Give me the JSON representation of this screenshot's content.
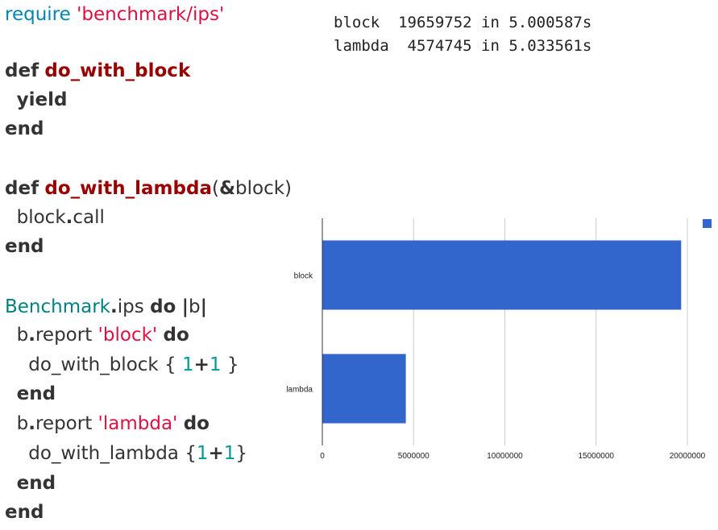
{
  "code": {
    "lines": [
      [
        {
          "t": "require",
          "c": "call"
        },
        {
          "t": " "
        },
        {
          "t": "'benchmark/ips'",
          "c": "str"
        }
      ],
      [],
      [
        {
          "t": "def",
          "c": "kw"
        },
        {
          "t": " "
        },
        {
          "t": "do_with_block",
          "c": "def"
        }
      ],
      [
        {
          "t": "  "
        },
        {
          "t": "yield",
          "c": "kw"
        }
      ],
      [
        {
          "t": "end",
          "c": "kw"
        }
      ],
      [],
      [
        {
          "t": "def",
          "c": "kw"
        },
        {
          "t": " "
        },
        {
          "t": "do_with_lambda",
          "c": "def"
        },
        {
          "t": "("
        },
        {
          "t": "&",
          "c": "kw"
        },
        {
          "t": "block)"
        }
      ],
      [
        {
          "t": "  block"
        },
        {
          "t": ".",
          "c": "kw"
        },
        {
          "t": "call"
        }
      ],
      [
        {
          "t": "end",
          "c": "kw"
        }
      ],
      [],
      [
        {
          "t": "Benchmark",
          "c": "const"
        },
        {
          "t": ".",
          "c": "kw"
        },
        {
          "t": "ips "
        },
        {
          "t": "do",
          "c": "kw"
        },
        {
          "t": " "
        },
        {
          "t": "|",
          "c": "kw"
        },
        {
          "t": "b"
        },
        {
          "t": "|",
          "c": "kw"
        }
      ],
      [
        {
          "t": "  b"
        },
        {
          "t": ".",
          "c": "kw"
        },
        {
          "t": "report "
        },
        {
          "t": "'block'",
          "c": "str"
        },
        {
          "t": " "
        },
        {
          "t": "do",
          "c": "kw"
        }
      ],
      [
        {
          "t": "    do_with_block { "
        },
        {
          "t": "1",
          "c": "num"
        },
        {
          "t": "+",
          "c": "kw"
        },
        {
          "t": "1",
          "c": "num"
        },
        {
          "t": " }"
        }
      ],
      [
        {
          "t": "  "
        },
        {
          "t": "end",
          "c": "kw"
        }
      ],
      [
        {
          "t": "  b"
        },
        {
          "t": ".",
          "c": "kw"
        },
        {
          "t": "report "
        },
        {
          "t": "'lambda'",
          "c": "str"
        },
        {
          "t": " "
        },
        {
          "t": "do",
          "c": "kw"
        }
      ],
      [
        {
          "t": "    do_with_lambda {"
        },
        {
          "t": "1",
          "c": "num"
        },
        {
          "t": "+",
          "c": "kw"
        },
        {
          "t": "1",
          "c": "num"
        },
        {
          "t": "}"
        }
      ],
      [
        {
          "t": "  "
        },
        {
          "t": "end",
          "c": "kw"
        }
      ],
      [
        {
          "t": "end",
          "c": "kw"
        }
      ]
    ]
  },
  "output": {
    "lines": [
      "block  19659752 in 5.000587s",
      "lambda  4574745 in 5.033561s"
    ]
  },
  "chart_data": {
    "type": "bar",
    "orientation": "horizontal",
    "categories": [
      "block",
      "lambda"
    ],
    "values": [
      19659752,
      4574745
    ],
    "xlim": [
      0,
      20000000
    ],
    "xticks": [
      0,
      5000000,
      10000000,
      15000000,
      20000000
    ],
    "xtick_labels": [
      "0",
      "5000000",
      "10000000",
      "15000000",
      "20000000"
    ],
    "title": "",
    "xlabel": "",
    "ylabel": "",
    "grid": "vertical",
    "legend": "top-right",
    "colors": {
      "bar": "#3366cc",
      "grid": "#cccccc",
      "axis": "#333333"
    }
  }
}
